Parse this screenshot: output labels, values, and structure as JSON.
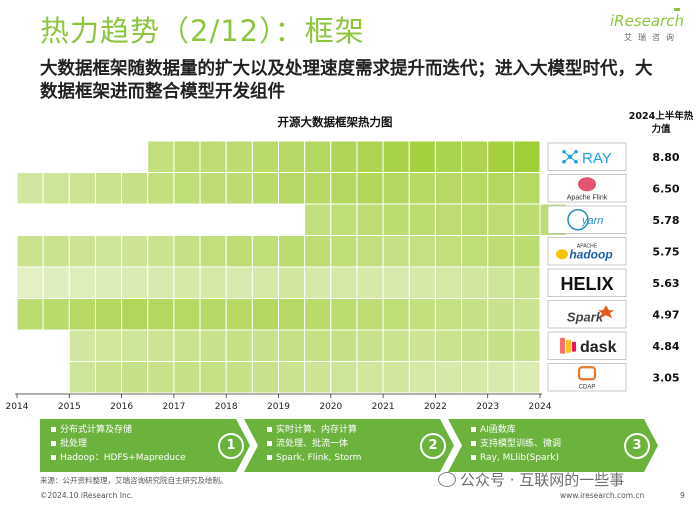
{
  "header": {
    "title": "热力趋势（2/12）：框架",
    "subtitle": "大数据框架随数据量的扩大以及处理速度需求提升而迭代；进入大模型时代，大数据框架进而整合模型开发组件",
    "brand_logo": "iResearch",
    "brand_sub": "艾瑞咨询"
  },
  "colors": {
    "accent": "#8cc63f",
    "heat_low": "#eef6de",
    "heat_high": "#9ccc2e",
    "stage": "#6cb33e"
  },
  "chart_data": {
    "type": "heatmap",
    "title": "开源大数据框架热力图",
    "value_header": "2024上半年热力值",
    "x_ticks": [
      "2014",
      "2015",
      "2016",
      "2017",
      "2018",
      "2019",
      "2020",
      "2021",
      "2022",
      "2023",
      "2024"
    ],
    "x_range": [
      2014,
      2024
    ],
    "period_step": 0.5,
    "series": [
      {
        "name": "RAY",
        "icon": "ray-logo-icon",
        "value": "8.80",
        "start": 2016.5,
        "intensities": [
          0.55,
          0.6,
          0.6,
          0.62,
          0.65,
          0.68,
          0.72,
          0.78,
          0.8,
          0.85,
          0.9,
          0.82,
          0.8,
          0.9,
          0.95
        ]
      },
      {
        "name": "Apache Flink",
        "icon": "flink-logo-icon",
        "value": "6.50",
        "start": 2014,
        "intensities": [
          0.35,
          0.4,
          0.42,
          0.45,
          0.5,
          0.55,
          0.58,
          0.6,
          0.62,
          0.65,
          0.68,
          0.7,
          0.72,
          0.75,
          0.72,
          0.7,
          0.68,
          0.7,
          0.72,
          0.7
        ]
      },
      {
        "name": "yarn",
        "icon": "yarn-logo-icon",
        "value": "5.78",
        "start": 2019.5,
        "intensities": [
          0.55,
          0.58,
          0.6,
          0.62,
          0.62,
          0.6,
          0.62,
          0.6,
          0.62,
          0.6
        ]
      },
      {
        "name": "Apache Hadoop",
        "icon": "hadoop-logo-icon",
        "value": "5.75",
        "start": 2014,
        "intensities": [
          0.45,
          0.45,
          0.42,
          0.4,
          0.42,
          0.45,
          0.5,
          0.55,
          0.6,
          0.58,
          0.62,
          0.6,
          0.58,
          0.55,
          0.5,
          0.52,
          0.55,
          0.58,
          0.6,
          0.62
        ]
      },
      {
        "name": "HELIX",
        "icon": "helix-logo-icon",
        "value": "5.63",
        "start": 2014,
        "intensities": [
          0.15,
          0.18,
          0.2,
          0.22,
          0.25,
          0.28,
          0.3,
          0.32,
          0.28,
          0.3,
          0.35,
          0.3,
          0.32,
          0.3,
          0.28,
          0.3,
          0.32,
          0.35,
          0.4,
          0.45
        ]
      },
      {
        "name": "Spark",
        "icon": "spark-logo-icon",
        "value": "4.97",
        "start": 2014,
        "intensities": [
          0.62,
          0.65,
          0.7,
          0.72,
          0.75,
          0.72,
          0.7,
          0.68,
          0.7,
          0.72,
          0.68,
          0.65,
          0.62,
          0.6,
          0.58,
          0.55,
          0.52,
          0.5,
          0.48,
          0.45
        ]
      },
      {
        "name": "dask",
        "icon": "dask-logo-icon",
        "value": "4.84",
        "start": 2015,
        "intensities": [
          0.35,
          0.38,
          0.4,
          0.42,
          0.45,
          0.48,
          0.5,
          0.48,
          0.5,
          0.52,
          0.5,
          0.48,
          0.45,
          0.42,
          0.45,
          0.48,
          0.5,
          0.48
        ]
      },
      {
        "name": "CDAP",
        "icon": "cdap-logo-icon",
        "value": "3.05",
        "start": 2015,
        "intensities": [
          0.4,
          0.45,
          0.5,
          0.48,
          0.5,
          0.52,
          0.5,
          0.48,
          0.45,
          0.42,
          0.4,
          0.38,
          0.35,
          0.32,
          0.3,
          0.3,
          0.28,
          0.25
        ]
      }
    ]
  },
  "stages": [
    {
      "number": "①",
      "items": [
        "分布式计算及存储",
        "批处理",
        "Hadoop：HDFS+Mapreduce"
      ]
    },
    {
      "number": "②",
      "items": [
        "实时计算、内存计算",
        "流处理、批流一体",
        "Spark, Flink, Storm"
      ]
    },
    {
      "number": "③",
      "items": [
        "AI函数库",
        "支持模型训练、微调",
        "Ray, MLlib(Spark)"
      ]
    }
  ],
  "footer": {
    "source": "来源：公开资料整理，艾瑞咨询研究院自主研究及绘制。",
    "copyright": "©2024.10 iResearch Inc.",
    "website": "www.iresearch.com.cn",
    "page": "9",
    "watermark": "公众号 · 互联网的一些事"
  }
}
